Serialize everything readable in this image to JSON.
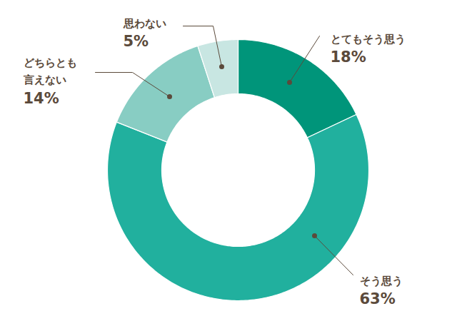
{
  "chart_data": {
    "type": "donut",
    "categories": [
      "とてもそう思う",
      "そう思う",
      "どちらとも\n言えない",
      "思わない"
    ],
    "values": [
      18,
      63,
      14,
      5
    ],
    "value_labels": [
      "18%",
      "63%",
      "14%",
      "5%"
    ],
    "colors": [
      "#00957a",
      "#21b09e",
      "#88cdc3",
      "#c8e6e2"
    ],
    "data_labels": true
  }
}
